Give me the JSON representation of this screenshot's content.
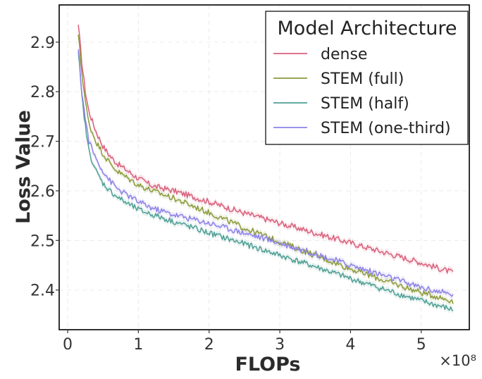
{
  "chart_data": {
    "type": "line",
    "title": "",
    "xlabel": "FLOPs",
    "ylabel": "Loss Value",
    "x_multiplier": "×10⁸",
    "xlim": [
      -0.12,
      5.68
    ],
    "ylim": [
      2.32,
      2.975
    ],
    "x_ticks": [
      0,
      1,
      2,
      3,
      4,
      5
    ],
    "x_tick_labels": [
      "0",
      "1",
      "2",
      "3",
      "4",
      "5"
    ],
    "y_ticks": [
      2.4,
      2.5,
      2.6,
      2.7,
      2.8,
      2.9
    ],
    "y_tick_labels": [
      "2.4",
      "2.5",
      "2.6",
      "2.7",
      "2.8",
      "2.9"
    ],
    "grid": true,
    "legend": {
      "title": "Model Architecture",
      "position": "top-right"
    },
    "series": [
      {
        "name": "dense",
        "color": "#d9607c",
        "x": [
          0.15,
          0.2,
          0.25,
          0.3,
          0.4,
          0.5,
          0.6,
          0.7,
          0.8,
          1.0,
          1.2,
          1.5,
          2.0,
          2.5,
          3.0,
          3.5,
          4.0,
          4.5,
          5.0,
          5.45
        ],
        "y": [
          2.935,
          2.86,
          2.8,
          2.76,
          2.72,
          2.69,
          2.67,
          2.655,
          2.645,
          2.625,
          2.61,
          2.6,
          2.578,
          2.555,
          2.535,
          2.515,
          2.495,
          2.475,
          2.455,
          2.435
        ]
      },
      {
        "name": "STEM (full)",
        "color": "#8c9a3b",
        "x": [
          0.15,
          0.2,
          0.25,
          0.3,
          0.4,
          0.5,
          0.6,
          0.7,
          0.8,
          1.0,
          1.2,
          1.5,
          2.0,
          2.5,
          3.0,
          3.5,
          4.0,
          4.5,
          5.0,
          5.45
        ],
        "y": [
          2.915,
          2.84,
          2.78,
          2.735,
          2.7,
          2.675,
          2.655,
          2.64,
          2.63,
          2.612,
          2.6,
          2.585,
          2.556,
          2.525,
          2.497,
          2.47,
          2.443,
          2.418,
          2.395,
          2.378
        ]
      },
      {
        "name": "STEM (half)",
        "color": "#4f9f95",
        "x": [
          0.15,
          0.2,
          0.25,
          0.3,
          0.4,
          0.5,
          0.6,
          0.7,
          0.8,
          1.0,
          1.2,
          1.5,
          2.0,
          2.5,
          3.0,
          3.5,
          4.0,
          4.5,
          5.0,
          5.45
        ],
        "y": [
          2.88,
          2.79,
          2.73,
          2.68,
          2.64,
          2.615,
          2.6,
          2.588,
          2.578,
          2.562,
          2.552,
          2.538,
          2.515,
          2.493,
          2.47,
          2.447,
          2.423,
          2.4,
          2.378,
          2.36
        ]
      },
      {
        "name": "STEM (one-third)",
        "color": "#8c82e6",
        "x": [
          0.15,
          0.2,
          0.25,
          0.3,
          0.4,
          0.5,
          0.6,
          0.7,
          0.8,
          1.0,
          1.2,
          1.5,
          2.0,
          2.5,
          3.0,
          3.5,
          4.0,
          4.5,
          5.0,
          5.45
        ],
        "y": [
          2.885,
          2.8,
          2.745,
          2.7,
          2.665,
          2.64,
          2.62,
          2.605,
          2.595,
          2.578,
          2.565,
          2.552,
          2.535,
          2.515,
          2.495,
          2.473,
          2.45,
          2.428,
          2.405,
          2.39
        ]
      }
    ]
  }
}
